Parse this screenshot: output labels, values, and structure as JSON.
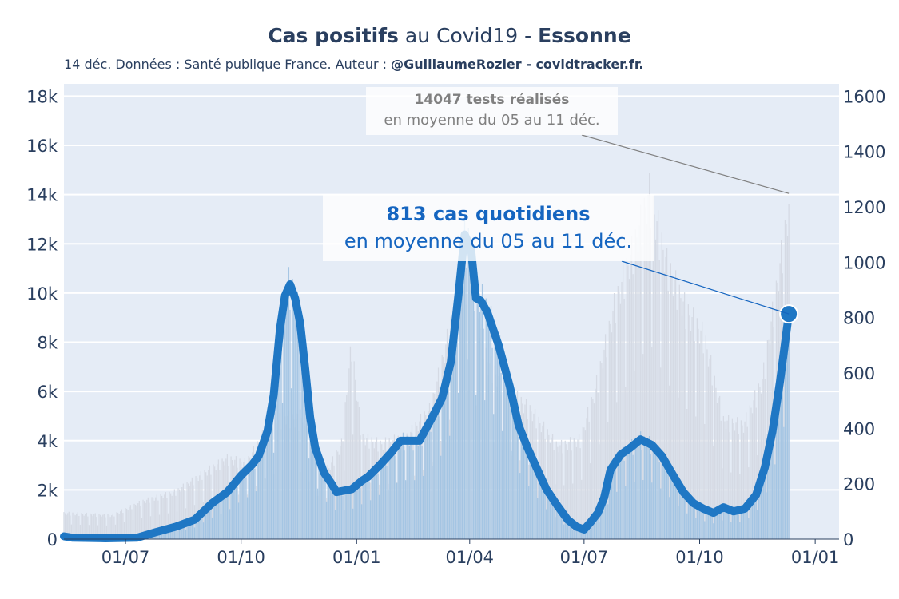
{
  "header": {
    "title_bold": "Cas positifs",
    "title_mid": " au Covid19 - ",
    "title_region": "Essonne",
    "subtitle_text": "14 déc. Données : Santé publique France. Auteur : ",
    "subtitle_bold": "@GuillaumeRozier - covidtracker.fr."
  },
  "annotations": {
    "tests_line1": "14047 tests réalisés",
    "tests_line2": "en moyenne du 05 au 11 déc.",
    "cases_line1": "813 cas quotidiens",
    "cases_line2": "en moyenne du 05 au 11 déc."
  },
  "colors": {
    "plot_bg": "#e5ecf6",
    "cases_line": "#1f77c4",
    "cases_fill": "#9ec2e2",
    "tests_bar": "#d5dae4",
    "annotation_cases": "#1565c0",
    "annotation_tests": "#808080"
  },
  "chart_data": {
    "type": "line",
    "title": "",
    "xlabel": "",
    "x_ticks": [
      "01/07",
      "01/10",
      "01/01",
      "01/04",
      "01/07",
      "01/10",
      "01/01"
    ],
    "x_range": [
      "2020-05-13",
      "2022-01-20"
    ],
    "y_left": {
      "label": "",
      "range": [
        0,
        18500
      ],
      "ticks": [
        0,
        2000,
        4000,
        6000,
        8000,
        10000,
        12000,
        14000,
        16000,
        18000
      ],
      "tick_labels": [
        "0",
        "2k",
        "4k",
        "6k",
        "8k",
        "10k",
        "12k",
        "14k",
        "16k",
        "18k"
      ]
    },
    "y_right": {
      "label": "",
      "range": [
        0,
        1644
      ],
      "ticks": [
        0,
        200,
        400,
        600,
        800,
        1000,
        1200,
        1400,
        1600
      ],
      "tick_labels": [
        "0",
        "200",
        "400",
        "600",
        "800",
        "1000",
        "1200",
        "1400",
        "1600"
      ]
    },
    "series": [
      {
        "axis": "right",
        "style": "thick line with area",
        "points": [
          [
            "2020-05-13",
            10
          ],
          [
            "2020-05-20",
            5
          ],
          [
            "2020-06-15",
            3
          ],
          [
            "2020-07-10",
            5
          ],
          [
            "2020-07-25",
            25
          ],
          [
            "2020-08-10",
            45
          ],
          [
            "2020-08-25",
            70
          ],
          [
            "2020-09-08",
            130
          ],
          [
            "2020-09-20",
            170
          ],
          [
            "2020-10-01",
            230
          ],
          [
            "2020-10-10",
            270
          ],
          [
            "2020-10-15",
            300
          ],
          [
            "2020-10-22",
            390
          ],
          [
            "2020-10-27",
            520
          ],
          [
            "2020-11-01",
            760
          ],
          [
            "2020-11-05",
            880
          ],
          [
            "2020-11-09",
            920
          ],
          [
            "2020-11-13",
            870
          ],
          [
            "2020-11-17",
            780
          ],
          [
            "2020-11-21",
            620
          ],
          [
            "2020-11-25",
            440
          ],
          [
            "2020-11-29",
            330
          ],
          [
            "2020-12-06",
            240
          ],
          [
            "2020-12-12",
            200
          ],
          [
            "2020-12-16",
            170
          ],
          [
            "2020-12-28",
            180
          ],
          [
            "2021-01-05",
            210
          ],
          [
            "2021-01-10",
            225
          ],
          [
            "2021-01-20",
            270
          ],
          [
            "2021-01-28",
            310
          ],
          [
            "2021-02-05",
            355
          ],
          [
            "2021-02-20",
            355
          ],
          [
            "2021-03-01",
            430
          ],
          [
            "2021-03-10",
            510
          ],
          [
            "2021-03-17",
            640
          ],
          [
            "2021-03-23",
            880
          ],
          [
            "2021-03-28",
            1100
          ],
          [
            "2021-04-02",
            1050
          ],
          [
            "2021-04-06",
            870
          ],
          [
            "2021-04-10",
            860
          ],
          [
            "2021-04-15",
            820
          ],
          [
            "2021-04-24",
            700
          ],
          [
            "2021-05-03",
            550
          ],
          [
            "2021-05-10",
            410
          ],
          [
            "2021-05-17",
            330
          ],
          [
            "2021-05-24",
            260
          ],
          [
            "2021-06-01",
            180
          ],
          [
            "2021-06-10",
            120
          ],
          [
            "2021-06-18",
            70
          ],
          [
            "2021-06-25",
            45
          ],
          [
            "2021-07-01",
            35
          ],
          [
            "2021-07-06",
            60
          ],
          [
            "2021-07-12",
            95
          ],
          [
            "2021-07-17",
            150
          ],
          [
            "2021-07-22",
            250
          ],
          [
            "2021-07-30",
            305
          ],
          [
            "2021-08-07",
            330
          ],
          [
            "2021-08-15",
            360
          ],
          [
            "2021-08-24",
            340
          ],
          [
            "2021-09-01",
            300
          ],
          [
            "2021-09-10",
            230
          ],
          [
            "2021-09-18",
            170
          ],
          [
            "2021-09-26",
            130
          ],
          [
            "2021-10-04",
            110
          ],
          [
            "2021-10-12",
            95
          ],
          [
            "2021-10-20",
            115
          ],
          [
            "2021-10-28",
            100
          ],
          [
            "2021-11-06",
            110
          ],
          [
            "2021-11-15",
            160
          ],
          [
            "2021-11-22",
            260
          ],
          [
            "2021-11-28",
            390
          ],
          [
            "2021-12-04",
            570
          ],
          [
            "2021-12-11",
            813
          ]
        ]
      },
      {
        "axis": "left",
        "style": "thin bars",
        "points": [
          [
            "2020-05-13",
            1100
          ],
          [
            "2020-06-20",
            1000
          ],
          [
            "2020-07-15",
            1600
          ],
          [
            "2020-08-10",
            2000
          ],
          [
            "2020-08-30",
            2700
          ],
          [
            "2020-09-20",
            3400
          ],
          [
            "2020-10-05",
            3200
          ],
          [
            "2020-10-20",
            4500
          ],
          [
            "2020-11-05",
            5200
          ],
          [
            "2020-11-20",
            4900
          ],
          [
            "2020-12-01",
            3200
          ],
          [
            "2020-12-10",
            3000
          ],
          [
            "2020-12-20",
            4000
          ],
          [
            "2020-12-28",
            8200
          ],
          [
            "2021-01-05",
            4300
          ],
          [
            "2021-01-20",
            4000
          ],
          [
            "2021-02-10",
            4300
          ],
          [
            "2021-03-01",
            5500
          ],
          [
            "2021-03-20",
            9700
          ],
          [
            "2021-04-01",
            11200
          ],
          [
            "2021-04-15",
            7500
          ],
          [
            "2021-05-01",
            6300
          ],
          [
            "2021-05-20",
            5400
          ],
          [
            "2021-06-10",
            3900
          ],
          [
            "2021-06-28",
            4200
          ],
          [
            "2021-07-10",
            6300
          ],
          [
            "2021-07-25",
            9800
          ],
          [
            "2021-08-10",
            12400
          ],
          [
            "2021-08-22",
            14600
          ],
          [
            "2021-09-05",
            11600
          ],
          [
            "2021-09-20",
            9700
          ],
          [
            "2021-10-05",
            8500
          ],
          [
            "2021-10-20",
            5000
          ],
          [
            "2021-11-05",
            4800
          ],
          [
            "2021-11-20",
            6700
          ],
          [
            "2021-12-01",
            10500
          ],
          [
            "2021-12-11",
            14047
          ]
        ]
      }
    ],
    "markers": [
      [
        "2021-12-11",
        813
      ]
    ],
    "grid": true
  }
}
